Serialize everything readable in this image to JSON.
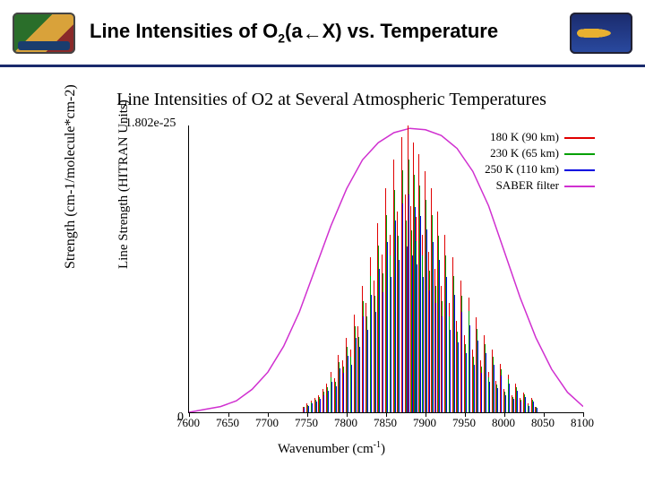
{
  "header": {
    "title_html": "Line Intensities of O<sub>2</sub>(a<span class='arrow'>&#8592;</span>X) vs. Temperature"
  },
  "chart": {
    "type": "line-impulse",
    "title": "Line Intensities of O2 at Several Atmospheric Temperatures",
    "y_max_label": "1.802e-25",
    "y_zero_label": "0",
    "ylabel_outer": "Strength (cm-1/molecule*cm-2)",
    "ylabel_inner": "Line Strength (HITRAN Units)",
    "xlabel_html": "Wavenumber (cm<sup>-1</sup>)",
    "xlim": [
      7600,
      8100
    ],
    "xticks": [
      7600,
      7650,
      7700,
      7750,
      7800,
      7850,
      7900,
      7950,
      8000,
      8050,
      8100
    ],
    "background_color": "#ffffff",
    "axis_color": "#000000",
    "legend": [
      {
        "label": "180 K (90 km)",
        "color": "#e00000"
      },
      {
        "label": "230 K (65 km)",
        "color": "#00a000"
      },
      {
        "label": "250 K (110 km)",
        "color": "#0000e0"
      },
      {
        "label": "SABER filter",
        "color": "#d030d0"
      }
    ],
    "filter_curve": {
      "color": "#d030d0",
      "points": [
        [
          7600,
          0.0
        ],
        [
          7620,
          0.01
        ],
        [
          7640,
          0.02
        ],
        [
          7660,
          0.04
        ],
        [
          7680,
          0.08
        ],
        [
          7700,
          0.14
        ],
        [
          7720,
          0.23
        ],
        [
          7740,
          0.35
        ],
        [
          7760,
          0.5
        ],
        [
          7780,
          0.65
        ],
        [
          7800,
          0.78
        ],
        [
          7820,
          0.88
        ],
        [
          7840,
          0.94
        ],
        [
          7860,
          0.975
        ],
        [
          7880,
          0.99
        ],
        [
          7900,
          0.985
        ],
        [
          7920,
          0.965
        ],
        [
          7940,
          0.92
        ],
        [
          7960,
          0.84
        ],
        [
          7980,
          0.72
        ],
        [
          8000,
          0.56
        ],
        [
          8020,
          0.4
        ],
        [
          8040,
          0.26
        ],
        [
          8060,
          0.15
        ],
        [
          8080,
          0.07
        ],
        [
          8100,
          0.02
        ]
      ]
    },
    "impulses": {
      "x_range": [
        7740,
        8040
      ],
      "colors": [
        "#e00000",
        "#00a000",
        "#0000e0"
      ],
      "lines": [
        [
          7745,
          0.02
        ],
        [
          7750,
          0.03
        ],
        [
          7755,
          0.04
        ],
        [
          7760,
          0.05
        ],
        [
          7765,
          0.06
        ],
        [
          7770,
          0.08
        ],
        [
          7775,
          0.1
        ],
        [
          7780,
          0.14
        ],
        [
          7785,
          0.12
        ],
        [
          7790,
          0.2
        ],
        [
          7795,
          0.18
        ],
        [
          7800,
          0.26
        ],
        [
          7805,
          0.22
        ],
        [
          7810,
          0.34
        ],
        [
          7815,
          0.3
        ],
        [
          7820,
          0.44
        ],
        [
          7825,
          0.38
        ],
        [
          7830,
          0.54
        ],
        [
          7835,
          0.46
        ],
        [
          7840,
          0.66
        ],
        [
          7845,
          0.55
        ],
        [
          7850,
          0.78
        ],
        [
          7855,
          0.62
        ],
        [
          7860,
          0.88
        ],
        [
          7865,
          0.7
        ],
        [
          7870,
          0.96
        ],
        [
          7875,
          0.76
        ],
        [
          7878,
          1.0
        ],
        [
          7882,
          0.72
        ],
        [
          7885,
          0.94
        ],
        [
          7888,
          0.68
        ],
        [
          7892,
          0.9
        ],
        [
          7896,
          0.62
        ],
        [
          7900,
          0.84
        ],
        [
          7904,
          0.56
        ],
        [
          7908,
          0.78
        ],
        [
          7912,
          0.5
        ],
        [
          7916,
          0.7
        ],
        [
          7920,
          0.44
        ],
        [
          7925,
          0.62
        ],
        [
          7930,
          0.38
        ],
        [
          7935,
          0.54
        ],
        [
          7940,
          0.32
        ],
        [
          7945,
          0.46
        ],
        [
          7950,
          0.27
        ],
        [
          7955,
          0.4
        ],
        [
          7960,
          0.22
        ],
        [
          7965,
          0.33
        ],
        [
          7970,
          0.18
        ],
        [
          7975,
          0.27
        ],
        [
          7980,
          0.14
        ],
        [
          7985,
          0.22
        ],
        [
          7990,
          0.11
        ],
        [
          7995,
          0.17
        ],
        [
          8000,
          0.08
        ],
        [
          8005,
          0.13
        ],
        [
          8010,
          0.06
        ],
        [
          8015,
          0.1
        ],
        [
          8020,
          0.05
        ],
        [
          8025,
          0.07
        ],
        [
          8030,
          0.03
        ],
        [
          8035,
          0.05
        ],
        [
          8040,
          0.02
        ]
      ]
    }
  }
}
